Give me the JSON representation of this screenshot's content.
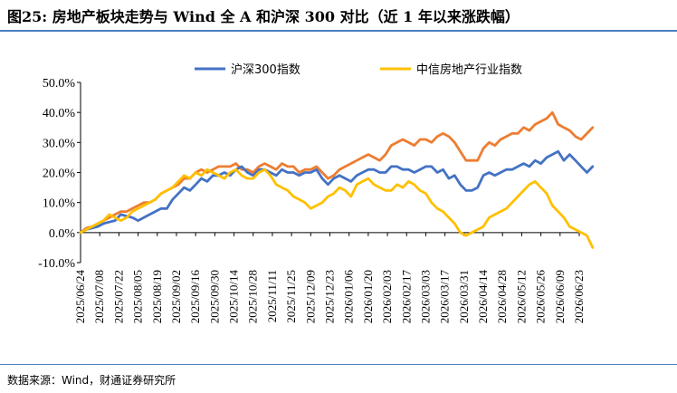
{
  "header": {
    "title": "图25: 房地产板块走势与 Wind 全 A 和沪深 300 对比（近 1 年以来涨跌幅）"
  },
  "footer": {
    "source": "数据来源：Wind，财通证券研究所"
  },
  "colors": {
    "rule": "#4a7fc1",
    "hs300": "#4472c4",
    "citic_re": "#ffc000",
    "wind_a": "#ed7d31"
  },
  "chart_data": {
    "type": "line",
    "title": "",
    "xlabel": "",
    "ylabel": "",
    "ylim": [
      -10,
      50
    ],
    "y_ticks": [
      -10,
      0,
      10,
      20,
      30,
      40,
      50
    ],
    "y_tick_labels": [
      "-10.0%",
      "0.0%",
      "10.0%",
      "20.0%",
      "30.0%",
      "40.0%",
      "50.0%"
    ],
    "x_tick_labels": [
      "2025/06/24",
      "2025/07/08",
      "2025/07/22",
      "2025/08/05",
      "2025/08/19",
      "2025/09/02",
      "2025/09/16",
      "2025/09/30",
      "2025/10/14",
      "2025/10/28",
      "2025/11/11",
      "2025/11/25",
      "2025/12/09",
      "2025/12/23",
      "2026/01/06",
      "2026/01/20",
      "2026/02/03",
      "2026/02/17",
      "2026/03/03",
      "2026/03/17",
      "2026/03/31",
      "2026/04/14",
      "2026/04/28",
      "2026/05/12",
      "2026/05/26",
      "2026/06/09",
      "2026/06/23"
    ],
    "legend": {
      "placement": "top"
    },
    "grid": false,
    "series": [
      {
        "name": "沪深300指数",
        "color": "#4472c4",
        "legend": true,
        "x": [
          0,
          0.3,
          0.6,
          0.9,
          1.2,
          1.5,
          1.8,
          2.1,
          2.4,
          2.7,
          3,
          3.3,
          3.6,
          3.9,
          4.2,
          4.5,
          4.8,
          5.1,
          5.4,
          5.7,
          6,
          6.3,
          6.6,
          6.9,
          7.2,
          7.5,
          7.8,
          8.1,
          8.4,
          8.7,
          9,
          9.3,
          9.6,
          9.9,
          10.2,
          10.5,
          10.8,
          11.1,
          11.4,
          11.7,
          12,
          12.3,
          12.6,
          12.9,
          13.2,
          13.5,
          13.8,
          14.1,
          14.4,
          14.7,
          15,
          15.3,
          15.6,
          15.9,
          16.2,
          16.5,
          16.8,
          17.1,
          17.4,
          17.7,
          18,
          18.3,
          18.6,
          18.9,
          19.2,
          19.5,
          19.8,
          20.1,
          20.4,
          20.7,
          21,
          21.3,
          21.6,
          21.9,
          22.2,
          22.5,
          22.8,
          23.1,
          23.4,
          23.7,
          24,
          24.3,
          24.6,
          24.9,
          25.2,
          25.5,
          25.8,
          26.1,
          26.4,
          26.7
        ],
        "values": [
          0,
          1,
          1.5,
          2,
          3,
          3.5,
          4,
          6,
          5.5,
          5,
          4,
          5,
          6,
          7,
          8,
          8,
          11,
          13,
          15,
          14,
          16,
          18,
          17,
          19,
          19,
          20,
          19,
          21,
          22,
          20,
          19,
          21,
          21,
          20,
          19,
          21,
          20,
          20,
          19,
          20,
          20,
          21,
          18,
          16,
          18,
          19,
          18,
          17,
          19,
          20,
          21,
          21,
          20,
          20,
          22,
          22,
          21,
          21,
          20,
          21,
          22,
          22,
          20,
          21,
          18,
          19,
          16,
          14,
          14,
          15,
          19,
          20,
          19,
          20,
          21,
          21,
          22,
          23,
          22,
          24,
          23,
          25,
          26,
          27,
          24,
          26,
          24,
          22,
          20,
          22
        ]
      },
      {
        "name": "中信房地产行业指数",
        "color": "#ffc000",
        "legend": true,
        "x": [
          0,
          0.3,
          0.6,
          0.9,
          1.2,
          1.5,
          1.8,
          2.1,
          2.4,
          2.7,
          3,
          3.3,
          3.6,
          3.9,
          4.2,
          4.5,
          4.8,
          5.1,
          5.4,
          5.7,
          6,
          6.3,
          6.6,
          6.9,
          7.2,
          7.5,
          7.8,
          8.1,
          8.4,
          8.7,
          9,
          9.3,
          9.6,
          9.9,
          10.2,
          10.5,
          10.8,
          11.1,
          11.4,
          11.7,
          12,
          12.3,
          12.6,
          12.9,
          13.2,
          13.5,
          13.8,
          14.1,
          14.4,
          14.7,
          15,
          15.3,
          15.6,
          15.9,
          16.2,
          16.5,
          16.8,
          17.1,
          17.4,
          17.7,
          18,
          18.3,
          18.6,
          18.9,
          19.2,
          19.5,
          19.8,
          20.1,
          20.4,
          20.7,
          21,
          21.3,
          21.6,
          21.9,
          22.2,
          22.5,
          22.8,
          23.1,
          23.4,
          23.7,
          24,
          24.3,
          24.6,
          24.9,
          25.2,
          25.5,
          25.8,
          26.1,
          26.4,
          26.7
        ],
        "values": [
          0,
          1,
          2,
          3,
          4,
          6,
          5,
          4,
          5,
          7,
          8,
          9,
          10,
          11,
          13,
          14,
          15,
          17,
          19,
          18,
          20,
          19,
          21,
          20,
          19,
          18,
          20,
          21,
          19,
          18,
          18,
          20,
          21,
          19,
          16,
          15,
          14,
          12,
          11,
          10,
          8,
          9,
          10,
          12,
          13,
          15,
          14,
          12,
          16,
          17,
          18,
          16,
          15,
          14,
          14,
          16,
          15,
          17,
          16,
          14,
          13,
          10,
          8,
          7,
          5,
          3,
          0,
          -1,
          0,
          1,
          2,
          5,
          6,
          7,
          8,
          10,
          12,
          14,
          16,
          17,
          15,
          13,
          9,
          7,
          5,
          2,
          1,
          0,
          -1,
          -5
        ]
      },
      {
        "name": "",
        "color": "#ed7d31",
        "legend": false,
        "x": [
          0,
          0.3,
          0.6,
          0.9,
          1.2,
          1.5,
          1.8,
          2.1,
          2.4,
          2.7,
          3,
          3.3,
          3.6,
          3.9,
          4.2,
          4.5,
          4.8,
          5.1,
          5.4,
          5.7,
          6,
          6.3,
          6.6,
          6.9,
          7.2,
          7.5,
          7.8,
          8.1,
          8.4,
          8.7,
          9,
          9.3,
          9.6,
          9.9,
          10.2,
          10.5,
          10.8,
          11.1,
          11.4,
          11.7,
          12,
          12.3,
          12.6,
          12.9,
          13.2,
          13.5,
          13.8,
          14.1,
          14.4,
          14.7,
          15,
          15.3,
          15.6,
          15.9,
          16.2,
          16.5,
          16.8,
          17.1,
          17.4,
          17.7,
          18,
          18.3,
          18.6,
          18.9,
          19.2,
          19.5,
          19.8,
          20.1,
          20.4,
          20.7,
          21,
          21.3,
          21.6,
          21.9,
          22.2,
          22.5,
          22.8,
          23.1,
          23.4,
          23.7,
          24,
          24.3,
          24.6,
          24.9,
          25.2,
          25.5,
          25.8,
          26.1,
          26.4,
          26.7
        ],
        "values": [
          0,
          1.5,
          2,
          3,
          4,
          5,
          6,
          7,
          7,
          8,
          9,
          10,
          10,
          11,
          13,
          14,
          15,
          16,
          18,
          18,
          20,
          21,
          20,
          21,
          22,
          22,
          22,
          23,
          21,
          21,
          20,
          22,
          23,
          22,
          21,
          23,
          22,
          22,
          20,
          21,
          21,
          22,
          20,
          18,
          19,
          21,
          22,
          23,
          24,
          25,
          26,
          25,
          24,
          26,
          29,
          30,
          31,
          30,
          29,
          31,
          31,
          30,
          32,
          33,
          32,
          30,
          27,
          24,
          24,
          24,
          28,
          30,
          29,
          31,
          32,
          33,
          33,
          35,
          34,
          36,
          37,
          38,
          40,
          36,
          35,
          34,
          32,
          31,
          33,
          35
        ]
      }
    ]
  }
}
